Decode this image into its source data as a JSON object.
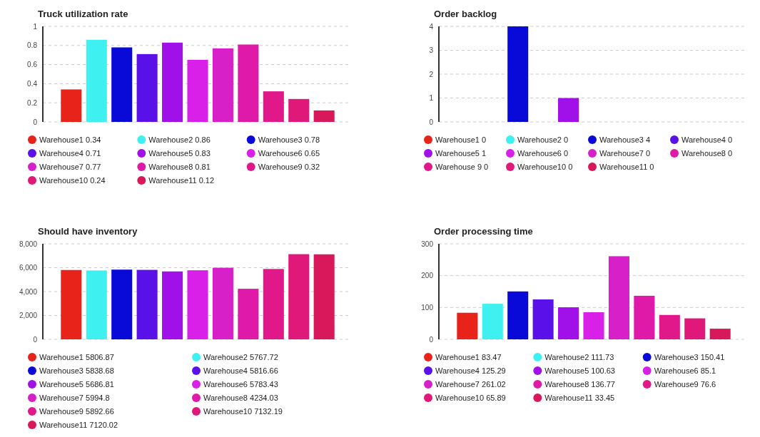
{
  "chart_data": [
    {
      "type": "bar",
      "title": "Truck utilization rate",
      "categories": [
        null
      ],
      "series": [
        {
          "name": "Warehouse1 0.34",
          "color": "#e8231a",
          "values": [
            0.34
          ]
        },
        {
          "name": "Warehouse2 0.86",
          "color": "#3ef0f0",
          "values": [
            0.86
          ]
        },
        {
          "name": "Warehouse3 0.78",
          "color": "#0a0ad8",
          "values": [
            0.78
          ]
        },
        {
          "name": "Warehouse4 0.71",
          "color": "#5a10e8",
          "values": [
            0.71
          ]
        },
        {
          "name": "Warehouse5 0.83",
          "color": "#a010e8",
          "values": [
            0.83
          ]
        },
        {
          "name": "Warehouse6 0.65",
          "color": "#d820e8",
          "values": [
            0.65
          ]
        },
        {
          "name": "Warehouse7 0.77",
          "color": "#d820c8",
          "values": [
            0.77
          ]
        },
        {
          "name": "Warehouse8 0.81",
          "color": "#e01aa8",
          "values": [
            0.81
          ]
        },
        {
          "name": "Warehouse9 0.32",
          "color": "#e0188a",
          "values": [
            0.32
          ]
        },
        {
          "name": "Warehouse10 0.24",
          "color": "#e0187a",
          "values": [
            0.24
          ]
        },
        {
          "name": "Warehouse11 0.12",
          "color": "#d8185a",
          "values": [
            0.12
          ]
        }
      ],
      "ylim": [
        0,
        1
      ],
      "yticks": [
        0,
        0.2,
        0.4,
        0.6,
        0.8,
        1
      ],
      "grid": "y",
      "legend": "bottom"
    },
    {
      "type": "bar",
      "title": "Order backlog",
      "categories": [
        null
      ],
      "series": [
        {
          "name": "Warehouse1 0",
          "color": "#e8231a",
          "values": [
            0
          ]
        },
        {
          "name": "Warehouse2 0",
          "color": "#3ef0f0",
          "values": [
            0
          ]
        },
        {
          "name": "Warehouse3 4",
          "color": "#0a0ad8",
          "values": [
            4
          ]
        },
        {
          "name": "Warehouse4 0",
          "color": "#5a10e8",
          "values": [
            0
          ]
        },
        {
          "name": "Warehouse5 1",
          "color": "#a010e8",
          "values": [
            1
          ]
        },
        {
          "name": "Warehouse6 0",
          "color": "#d820e8",
          "values": [
            0
          ]
        },
        {
          "name": "Warehouse7 0",
          "color": "#d820c8",
          "values": [
            0
          ]
        },
        {
          "name": "Warehouse8 0",
          "color": "#e01aa8",
          "values": [
            0
          ]
        },
        {
          "name": "Warehouse 9 0",
          "color": "#e0188a",
          "values": [
            0
          ]
        },
        {
          "name": "Warehouse10 0",
          "color": "#e0187a",
          "values": [
            0
          ]
        },
        {
          "name": "Warehouse11 0",
          "color": "#d8185a",
          "values": [
            0
          ]
        }
      ],
      "ylim": [
        0,
        4
      ],
      "yticks": [
        0,
        1,
        2,
        3,
        4
      ],
      "grid": "y",
      "legend": "bottom"
    },
    {
      "type": "bar",
      "title": "Should have inventory",
      "categories": [
        null
      ],
      "series": [
        {
          "name": "Warehouse1 5806.87",
          "color": "#e8231a",
          "values": [
            5806.87
          ]
        },
        {
          "name": "Warehouse2 5767.72",
          "color": "#3ef0f0",
          "values": [
            5767.72
          ]
        },
        {
          "name": "Warehouse3 5838.68",
          "color": "#0a0ad8",
          "values": [
            5838.68
          ]
        },
        {
          "name": "Warehouse4 5816.66",
          "color": "#5a10e8",
          "values": [
            5816.66
          ]
        },
        {
          "name": "Warehouse5 5686.81",
          "color": "#a010e8",
          "values": [
            5686.81
          ]
        },
        {
          "name": "Warehouse6 5783.43",
          "color": "#d820e8",
          "values": [
            5783.43
          ]
        },
        {
          "name": "Warehouse7 5994.8",
          "color": "#d820c8",
          "values": [
            5994.8
          ]
        },
        {
          "name": "Warehouse8 4234.03",
          "color": "#e01aa8",
          "values": [
            4234.03
          ]
        },
        {
          "name": "Warehouse9 5892.66",
          "color": "#e0188a",
          "values": [
            5892.66
          ]
        },
        {
          "name": "Warehouse10 7132.19",
          "color": "#e0187a",
          "values": [
            7132.19
          ]
        },
        {
          "name": "Warehouse11 7120.02",
          "color": "#d8185a",
          "values": [
            7120.02
          ]
        }
      ],
      "ylim": [
        0,
        8000
      ],
      "yticks": [
        {
          "value": 0,
          "label": "0"
        },
        {
          "value": 2000,
          "label": "2,000"
        },
        {
          "value": 4000,
          "label": "4,000"
        },
        {
          "value": 6000,
          "label": "6,000"
        },
        {
          "value": 8000,
          "label": "8,000"
        }
      ],
      "grid": "y",
      "legend": "bottom"
    },
    {
      "type": "bar",
      "title": "Order processing time",
      "categories": [
        null
      ],
      "series": [
        {
          "name": "Warehouse1 83.47",
          "color": "#e8231a",
          "values": [
            83.47
          ]
        },
        {
          "name": "Warehouse2 111.73",
          "color": "#3ef0f0",
          "values": [
            111.73
          ]
        },
        {
          "name": "Warehouse3 150.41",
          "color": "#0a0ad8",
          "values": [
            150.41
          ]
        },
        {
          "name": "Warehouse4 125.29",
          "color": "#5a10e8",
          "values": [
            125.29
          ]
        },
        {
          "name": "Warehouse5 100.63",
          "color": "#a010e8",
          "values": [
            100.63
          ]
        },
        {
          "name": "Warehouse6 85.1",
          "color": "#d820e8",
          "values": [
            85.1
          ]
        },
        {
          "name": "Warehouse7 261.02",
          "color": "#d820c8",
          "values": [
            261.02
          ]
        },
        {
          "name": "Warehouse8 136.77",
          "color": "#e01aa8",
          "values": [
            136.77
          ]
        },
        {
          "name": "Warehouse9 76.6",
          "color": "#e0188a",
          "values": [
            76.6
          ]
        },
        {
          "name": "Warehouse10 65.89",
          "color": "#e0187a",
          "values": [
            65.89
          ]
        },
        {
          "name": "Warehouse11 33.45",
          "color": "#d8185a",
          "values": [
            33.45
          ]
        }
      ],
      "ylim": [
        0,
        300
      ],
      "yticks": [
        0,
        100,
        200,
        300
      ],
      "grid": "y",
      "legend": "bottom"
    }
  ]
}
